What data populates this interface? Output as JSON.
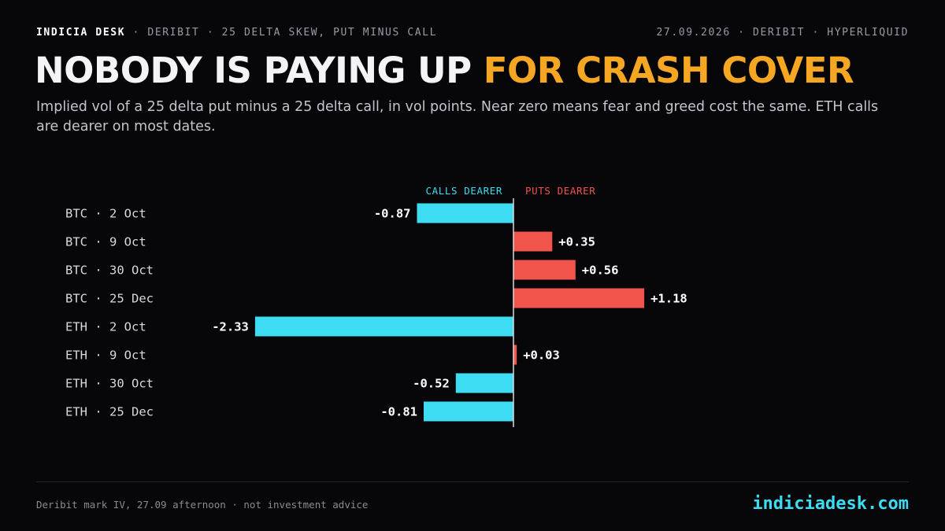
{
  "header": {
    "brand": "INDICIA DESK",
    "context": " · DERIBIT · 25 DELTA SKEW, PUT MINUS CALL",
    "date_source": "27.09.2026 · DERIBIT · HYPERLIQUID"
  },
  "headline": {
    "main": "NOBODY IS PAYING UP ",
    "accent": "FOR CRASH COVER"
  },
  "subtitle": "Implied vol of a 25 delta put minus a 25 delta call, in vol points. Near zero means fear and greed cost the same. ETH calls are dearer on most dates.",
  "chart_data": {
    "type": "bar",
    "orientation": "horizontal",
    "unit": "vol points",
    "negative_label": "CALLS DEARER",
    "positive_label": "PUTS DEARER",
    "categories": [
      "BTC · 2 Oct",
      "BTC · 9 Oct",
      "BTC · 30 Oct",
      "BTC · 25 Dec",
      "ETH · 2 Oct",
      "ETH · 9 Oct",
      "ETH · 30 Oct",
      "ETH · 25 Dec"
    ],
    "values": [
      -0.87,
      0.35,
      0.56,
      1.18,
      -2.33,
      0.03,
      -0.52,
      -0.81
    ],
    "value_labels": [
      "-0.87",
      "+0.35",
      "+0.56",
      "+1.18",
      "-2.33",
      "+0.03",
      "-0.52",
      "-0.81"
    ],
    "colors": {
      "negative": "#3ddcf2",
      "positive": "#f0544a",
      "axis": "#d9d9de"
    }
  },
  "footer": {
    "note": "Deribit mark IV, 27.09 afternoon · not investment advice",
    "site": "indiciadesk.com"
  }
}
